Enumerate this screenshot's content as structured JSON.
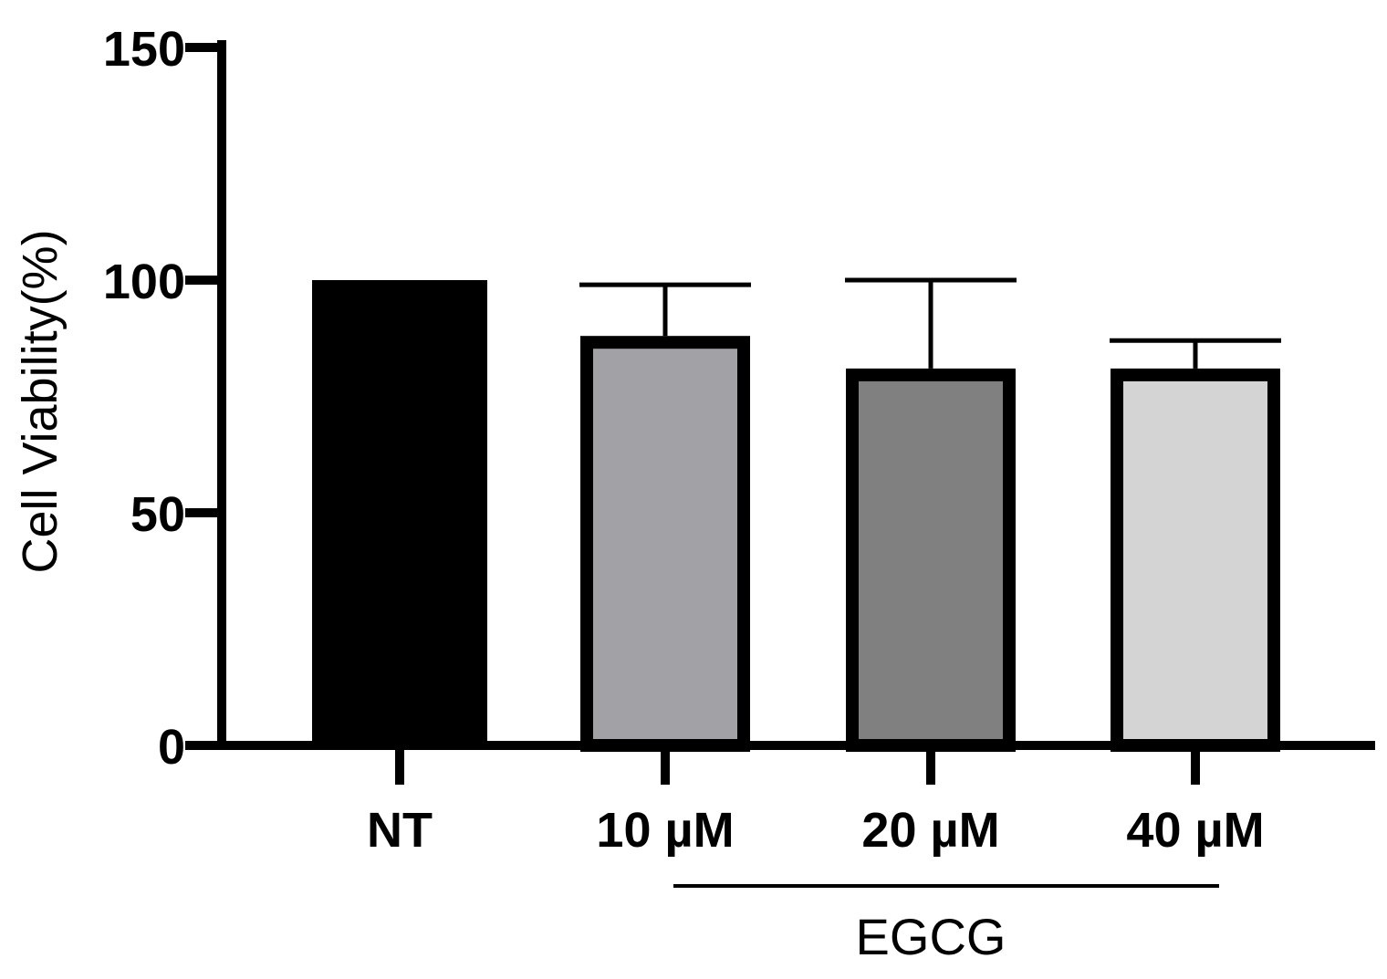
{
  "chart_data": {
    "type": "bar",
    "title": "",
    "xlabel": "",
    "ylabel": "Cell Viability(%)",
    "ylim": [
      0,
      150
    ],
    "yticks": [
      0,
      50,
      100,
      150
    ],
    "categories": [
      "NT",
      "10 µM",
      "20 µM",
      "40 µM"
    ],
    "values": [
      100,
      88,
      81,
      81
    ],
    "error_upper": [
      0,
      11,
      19,
      6
    ],
    "bar_colors": [
      "#000000",
      "#a2a1a5",
      "#808080",
      "#d4d4d4"
    ],
    "group_bracket": {
      "label": "EGCG",
      "from_category": 1,
      "to_category": 3
    }
  }
}
